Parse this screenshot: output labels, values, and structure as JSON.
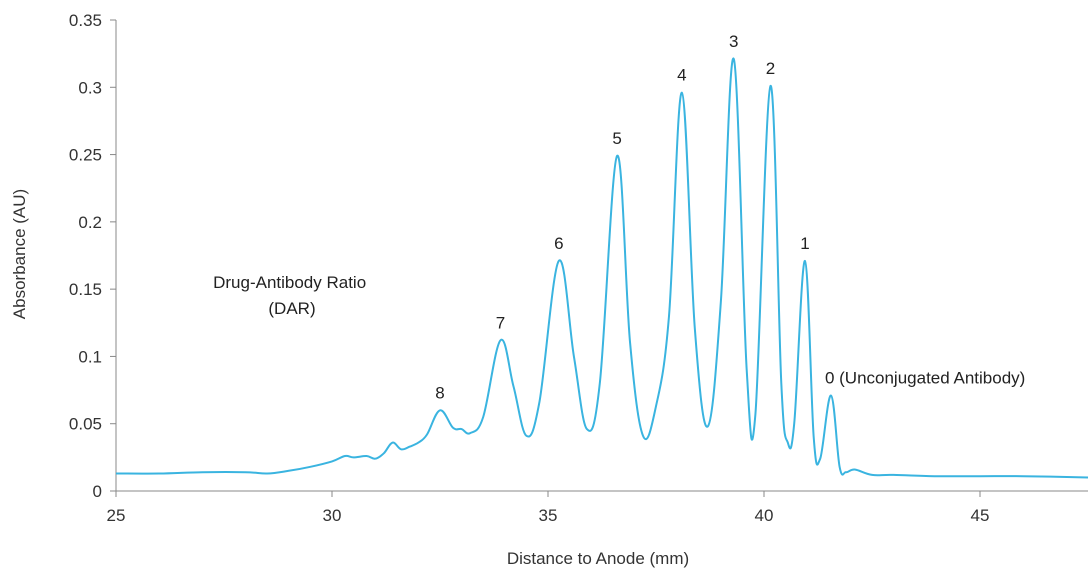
{
  "chart_data": {
    "type": "line",
    "title": "",
    "xlabel": "Distance to Anode (mm)",
    "ylabel": "Absorbance (AU)",
    "xlim": [
      25,
      47.5
    ],
    "ylim": [
      0,
      0.35
    ],
    "x_ticks": [
      25,
      30,
      35,
      40,
      45
    ],
    "y_ticks": [
      0,
      0.05,
      0.1,
      0.15,
      0.2,
      0.25,
      0.3,
      0.35
    ],
    "x_tick_labels": [
      "25",
      "30",
      "35",
      "40",
      "45"
    ],
    "y_tick_labels": [
      "0",
      "0.05",
      "0.1",
      "0.15",
      "0.2",
      "0.25",
      "0.3",
      "0.35"
    ],
    "grid": false,
    "legend": "none",
    "line_color": "#3ab4e0",
    "annotation": [
      "Drug-Antibody Ratio",
      "(DAR)"
    ],
    "peaks": [
      {
        "label": "8",
        "x": 32.5,
        "y": 0.06
      },
      {
        "label": "7",
        "x": 33.9,
        "y": 0.112
      },
      {
        "label": "6",
        "x": 35.25,
        "y": 0.171
      },
      {
        "label": "5",
        "x": 36.6,
        "y": 0.249
      },
      {
        "label": "4",
        "x": 38.1,
        "y": 0.296
      },
      {
        "label": "3",
        "x": 39.3,
        "y": 0.321
      },
      {
        "label": "2",
        "x": 40.15,
        "y": 0.301
      },
      {
        "label": "1",
        "x": 40.95,
        "y": 0.171
      },
      {
        "label": "0 (Unconjugated Antibody)",
        "x": 41.55,
        "y": 0.071
      }
    ],
    "series": [
      {
        "x": [
          25,
          26,
          27,
          28,
          28.5,
          29,
          29.5,
          30,
          30.3,
          30.5,
          30.8,
          31,
          31.2,
          31.4,
          31.6,
          31.8,
          32,
          32.2,
          32.5,
          32.8,
          33,
          33.2,
          33.5,
          33.9,
          34.2,
          34.5,
          34.8,
          35.25,
          35.6,
          35.9,
          36.2,
          36.6,
          36.9,
          37.2,
          37.5,
          37.8,
          38.1,
          38.4,
          38.7,
          39,
          39.3,
          39.6,
          39.8,
          40.15,
          40.4,
          40.55,
          40.7,
          40.95,
          41.15,
          41.3,
          41.55,
          41.75,
          41.9,
          42.1,
          42.5,
          43,
          44,
          45,
          46,
          47.5
        ],
        "y": [
          0.013,
          0.013,
          0.014,
          0.014,
          0.013,
          0.015,
          0.018,
          0.022,
          0.026,
          0.025,
          0.026,
          0.024,
          0.028,
          0.036,
          0.031,
          0.033,
          0.036,
          0.042,
          0.06,
          0.047,
          0.046,
          0.043,
          0.055,
          0.112,
          0.078,
          0.041,
          0.066,
          0.171,
          0.1,
          0.046,
          0.08,
          0.249,
          0.11,
          0.041,
          0.063,
          0.13,
          0.296,
          0.12,
          0.048,
          0.14,
          0.321,
          0.09,
          0.057,
          0.301,
          0.08,
          0.036,
          0.05,
          0.171,
          0.04,
          0.024,
          0.071,
          0.018,
          0.014,
          0.016,
          0.012,
          0.012,
          0.011,
          0.011,
          0.011,
          0.01
        ]
      }
    ]
  }
}
